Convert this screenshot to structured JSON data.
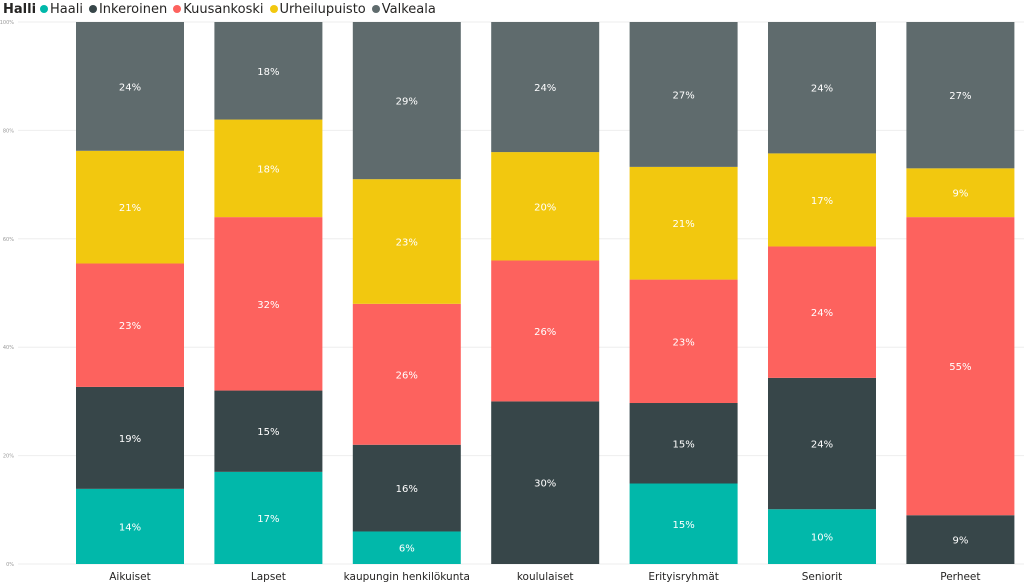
{
  "legend": {
    "title": "Halli",
    "items": [
      {
        "label": "Haali",
        "color": "#01B8AA"
      },
      {
        "label": "Inkeroinen",
        "color": "#374649"
      },
      {
        "label": "Kuusankoski",
        "color": "#FD625E"
      },
      {
        "label": "Urheilupuisto",
        "color": "#F2C80F"
      },
      {
        "label": "Valkeala",
        "color": "#5F6B6D"
      }
    ]
  },
  "chart_data": {
    "type": "bar",
    "stacked": "100%",
    "categories": [
      "Aikuiset",
      "Lapset",
      "kaupungin henkilökunta",
      "koululaiset",
      "Erityisryhmät",
      "Seniorit",
      "Perheet"
    ],
    "series": [
      {
        "name": "Haali",
        "color": "#01B8AA",
        "values": [
          0.14,
          0.17,
          0.06,
          0,
          0.15,
          0.1,
          0
        ]
      },
      {
        "name": "Inkeroinen",
        "color": "#374649",
        "values": [
          0.19,
          0.15,
          0.16,
          0.3,
          0.15,
          0.24,
          0.09
        ]
      },
      {
        "name": "Kuusankoski",
        "color": "#FD625E",
        "values": [
          0.23,
          0.32,
          0.26,
          0.26,
          0.23,
          0.24,
          0.55
        ]
      },
      {
        "name": "Urheilupuisto",
        "color": "#F2C80F",
        "values": [
          0.21,
          0.18,
          0.23,
          0.2,
          0.21,
          0.17,
          0.09
        ]
      },
      {
        "name": "Valkeala",
        "color": "#5F6B6D",
        "values": [
          0.24,
          0.18,
          0.29,
          0.24,
          0.27,
          0.24,
          0.27
        ]
      }
    ],
    "data_labels": [
      [
        "14%",
        "17%",
        "6%",
        "",
        "15%",
        "10%",
        ""
      ],
      [
        "19%",
        "15%",
        "16%",
        "30%",
        "15%",
        "24%",
        "9%"
      ],
      [
        "23%",
        "32%",
        "26%",
        "26%",
        "23%",
        "24%",
        "55%"
      ],
      [
        "21%",
        "18%",
        "23%",
        "20%",
        "21%",
        "17%",
        "9%"
      ],
      [
        "24%",
        "18%",
        "29%",
        "24%",
        "27%",
        "24%",
        "27%"
      ]
    ],
    "y_ticks": [
      "0%",
      "20%",
      "40%",
      "60%",
      "80%",
      "100%"
    ],
    "ylim": [
      0,
      1
    ],
    "grid": true,
    "legend_position": "top-left"
  }
}
